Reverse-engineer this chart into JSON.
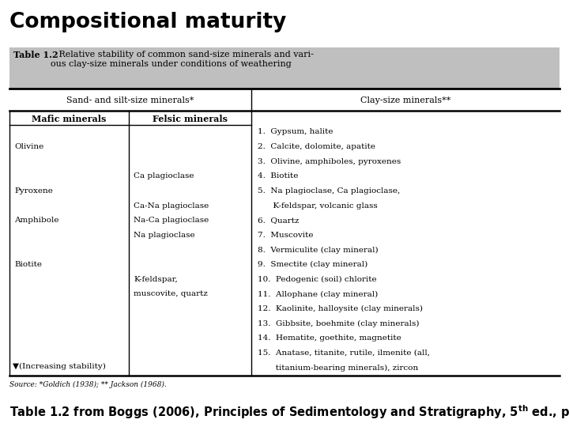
{
  "title": "Compositional maturity",
  "table_title_bold": "Table 1.2",
  "table_title_rest": "   Relative stability of common sand-size minerals and vari-\nous clay-size minerals under conditions of weathering",
  "col_header_left": "Sand- and silt-size minerals*",
  "col_header_right": "Clay-size minerals**",
  "sub_header_left1": "Mafic minerals",
  "sub_header_left2": "Felsic minerals",
  "mafic_items": [
    {
      "text": "Olivine",
      "row": 1
    },
    {
      "text": "Pyroxene",
      "row": 4
    },
    {
      "text": "Amphibole",
      "row": 6
    },
    {
      "text": "Biotite",
      "row": 9
    }
  ],
  "felsic_items": [
    {
      "text": "Ca plagioclase",
      "row": 3
    },
    {
      "text": "Ca-Na plagioclase",
      "row": 5
    },
    {
      "text": "Na-Ca plagioclase",
      "row": 6
    },
    {
      "text": "Na plagioclase",
      "row": 7
    },
    {
      "text": "K-feldspar,",
      "row": 10
    },
    {
      "text": "muscovite, quartz",
      "row": 11
    }
  ],
  "clay_lines": [
    {
      "text": "1.  Gypsum, halite",
      "row": 0
    },
    {
      "text": "2.  Calcite, dolomite, apatite",
      "row": 1
    },
    {
      "text": "3.  Olivine, amphiboles, pyroxenes",
      "row": 2
    },
    {
      "text": "4.  Biotite",
      "row": 3
    },
    {
      "text": "5.  Na plagioclase, Ca plagioclase,",
      "row": 4
    },
    {
      "text": "      K-feldspar, volcanic glass",
      "row": 5
    },
    {
      "text": "6.  Quartz",
      "row": 6
    },
    {
      "text": "7.  Muscovite",
      "row": 7
    },
    {
      "text": "8.  Vermiculite (clay mineral)",
      "row": 8
    },
    {
      "text": "9.  Smectite (clay mineral)",
      "row": 9
    },
    {
      "text": "10.  Pedogenic (soil) chlorite",
      "row": 10
    },
    {
      "text": "11.  Allophane (clay mineral)",
      "row": 11
    },
    {
      "text": "12.  Kaolinite, halloysite (clay minerals)",
      "row": 12
    },
    {
      "text": "13.  Gibbsite, boehmite (clay minerals)",
      "row": 13
    },
    {
      "text": "14.  Hematite, goethite, magnetite",
      "row": 14
    },
    {
      "text": "15.  Anatase, titanite, rutile, ilmenite (all,",
      "row": 15
    },
    {
      "text": "       titanium-bearing minerals), zircon",
      "row": 16
    }
  ],
  "n_body_rows": 17,
  "footer": "Source: *Goldich (1938); ** Jackson (1968).",
  "increasing_stability": "▼(Increasing stability)",
  "bg_header_color": "#c0bfbf",
  "bg_white": "#ffffff"
}
